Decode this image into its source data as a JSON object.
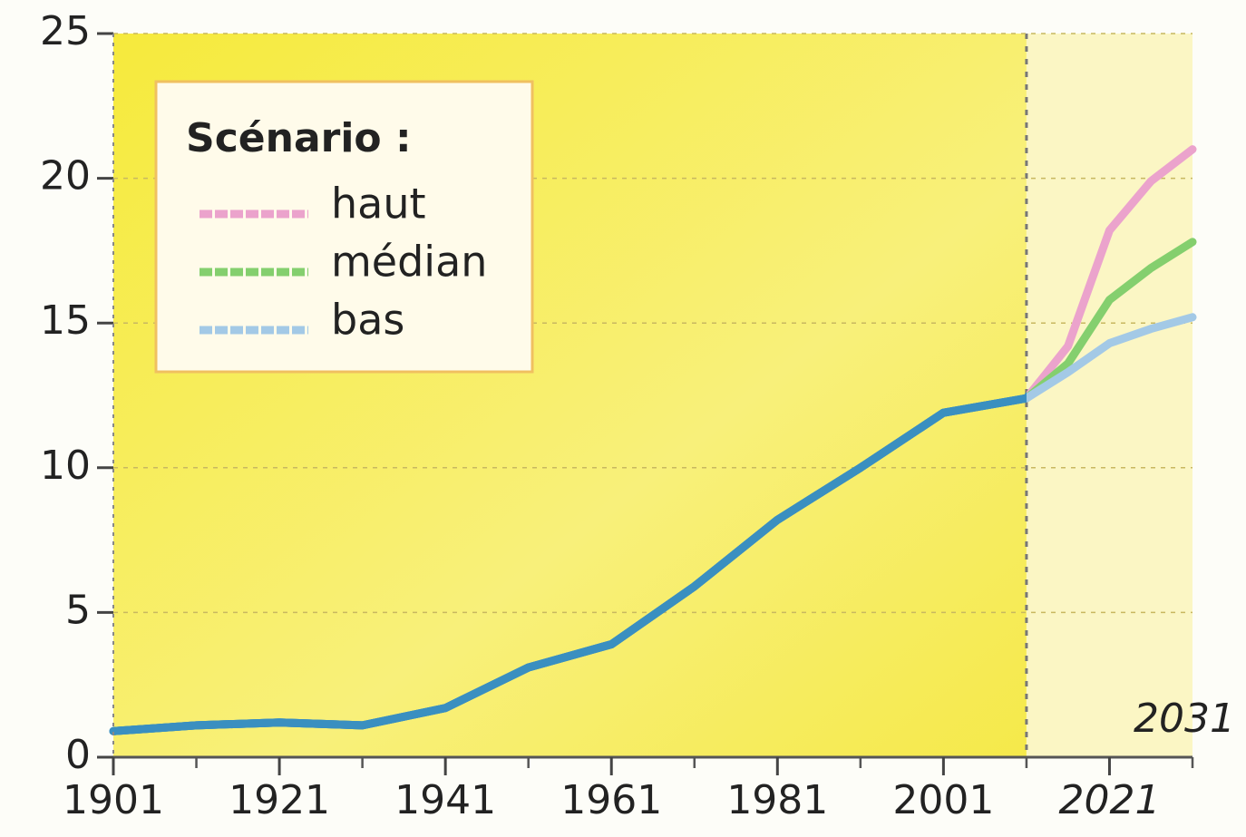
{
  "chart_data": {
    "type": "line",
    "legend_title": "Scénario :",
    "legend_position": "upper left",
    "x": [
      1901,
      1911,
      1921,
      1931,
      1941,
      1951,
      1961,
      1971,
      1981,
      1991,
      2001,
      2011,
      2016,
      2021,
      2026,
      2031
    ],
    "series": [
      {
        "name": "haut",
        "color": "#eba3cc",
        "values": [
          0.9,
          1.1,
          1.2,
          1.1,
          1.7,
          3.1,
          3.9,
          5.9,
          8.2,
          10.0,
          11.9,
          12.4,
          14.2,
          18.2,
          19.9,
          21.0
        ]
      },
      {
        "name": "médian",
        "color": "#84cf6e",
        "values": [
          0.9,
          1.1,
          1.2,
          1.1,
          1.7,
          3.1,
          3.9,
          5.9,
          8.2,
          10.0,
          11.9,
          12.4,
          13.6,
          15.8,
          16.9,
          17.8
        ]
      },
      {
        "name": "bas",
        "color": "#a3c9e6",
        "values": [
          0.9,
          1.1,
          1.2,
          1.1,
          1.7,
          3.1,
          3.9,
          5.9,
          8.2,
          10.0,
          11.9,
          12.4,
          13.3,
          14.3,
          14.8,
          15.2
        ]
      }
    ],
    "history_color": "#3a8fc0",
    "projection_start": 2011,
    "xlim": [
      1901,
      2031
    ],
    "xticks": [
      1901,
      1921,
      1941,
      1961,
      1981,
      2001,
      2021
    ],
    "xminorticks": [
      1911,
      1931,
      1951,
      1971,
      1991,
      2011,
      2031
    ],
    "ylim": [
      0,
      25
    ],
    "yticks": [
      0,
      5,
      10,
      15,
      20,
      25
    ],
    "grid": true
  }
}
